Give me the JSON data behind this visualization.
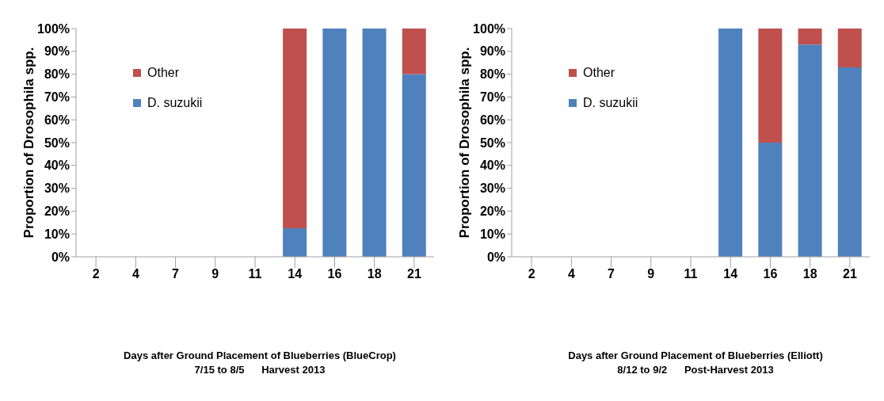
{
  "chart_data": [
    {
      "type": "bar",
      "stacked": true,
      "categories": [
        "2",
        "4",
        "7",
        "9",
        "11",
        "14",
        "16",
        "18",
        "21"
      ],
      "ylabel": "Proportion of Drosophila spp.",
      "xlabel": "Days after Ground Placement of Blueberries (BlueCrop)\n7/15 to 8/5      Harvest 2013",
      "ylim": [
        0,
        100
      ],
      "yticks": [
        {
          "value": 0,
          "label": "0%"
        },
        {
          "value": 10,
          "label": "10%"
        },
        {
          "value": 20,
          "label": "20%"
        },
        {
          "value": 30,
          "label": "30%"
        },
        {
          "value": 40,
          "label": "40%"
        },
        {
          "value": 50,
          "label": "50%"
        },
        {
          "value": 60,
          "label": "60%"
        },
        {
          "value": 70,
          "label": "70%"
        },
        {
          "value": 80,
          "label": "80%"
        },
        {
          "value": 90,
          "label": "90%"
        },
        {
          "value": 100,
          "label": "100%"
        }
      ],
      "legend": "top left",
      "grid": false,
      "series": [
        {
          "name": "D. suzukii",
          "color": "#4f81bd",
          "values": [
            0,
            0,
            0,
            0,
            0,
            12.5,
            100,
            100,
            80
          ]
        },
        {
          "name": "Other",
          "color": "#c0504d",
          "values": [
            0,
            0,
            0,
            0,
            0,
            87.5,
            0,
            0,
            20
          ]
        }
      ]
    },
    {
      "type": "bar",
      "stacked": true,
      "categories": [
        "2",
        "4",
        "7",
        "9",
        "11",
        "14",
        "16",
        "18",
        "21"
      ],
      "ylabel": "Proportion of Drosophila spp.",
      "xlabel": "Days after Ground Placement of Blueberries (Elliott)\n8/12 to 9/2      Post-Harvest 2013",
      "ylim": [
        0,
        100
      ],
      "yticks": [
        {
          "value": 0,
          "label": "0%"
        },
        {
          "value": 10,
          "label": "10%"
        },
        {
          "value": 20,
          "label": "20%"
        },
        {
          "value": 30,
          "label": "30%"
        },
        {
          "value": 40,
          "label": "40%"
        },
        {
          "value": 50,
          "label": "50%"
        },
        {
          "value": 60,
          "label": "60%"
        },
        {
          "value": 70,
          "label": "70%"
        },
        {
          "value": 80,
          "label": "80%"
        },
        {
          "value": 90,
          "label": "90%"
        },
        {
          "value": 100,
          "label": "100%"
        }
      ],
      "legend": "top left",
      "grid": false,
      "series": [
        {
          "name": "D. suzukii",
          "color": "#4f81bd",
          "values": [
            0,
            0,
            0,
            0,
            0,
            100,
            50,
            93,
            83
          ]
        },
        {
          "name": "Other",
          "color": "#c0504d",
          "values": [
            0,
            0,
            0,
            0,
            0,
            0,
            50,
            7,
            17
          ]
        }
      ]
    }
  ]
}
